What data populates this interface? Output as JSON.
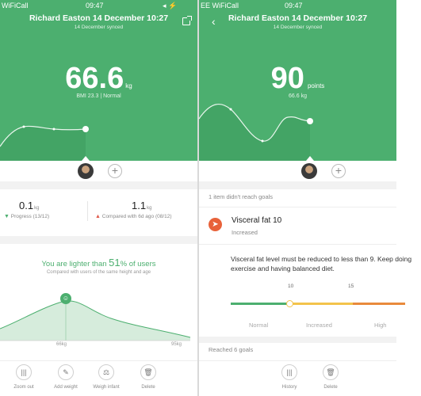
{
  "left": {
    "status_carrier": "WiFiCall",
    "status_time": "09:47",
    "title": "Richard Easton 14 December 10:27",
    "synced": "14 December synced",
    "weight_value": "66.6",
    "weight_unit": "kg",
    "bmi_text": "BMI 23.3 | Normal",
    "stats": [
      {
        "value": "0.1",
        "unit": "kg",
        "label": "Progress (13/12)",
        "trend": "down"
      },
      {
        "value": "1.1",
        "unit": "kg",
        "label": "Compared with 6d ago (08/12)",
        "trend": "up"
      }
    ],
    "lighter_prefix": "You are lighter than",
    "lighter_pct": "51",
    "lighter_suffix": "% of users",
    "compared_note": "Compared with users of the same height and age",
    "dist_axis": [
      "66kg",
      "95kg"
    ],
    "bottom_nav": [
      {
        "label": "Zoom out",
        "icon": "bars-icon"
      },
      {
        "label": "Add weight",
        "icon": "edit-icon"
      },
      {
        "label": "Weigh infant",
        "icon": "scale-icon"
      },
      {
        "label": "Delete",
        "icon": "trash-icon"
      }
    ]
  },
  "right": {
    "status_carrier": "EE WiFiCall",
    "status_time": "09:47",
    "title": "Richard Easton 14 December 10:27",
    "synced": "14 December synced",
    "score_value": "90",
    "score_unit": "points",
    "weight_sub": "66.6 kg",
    "goals_not_reached": "1 item didn't reach goals",
    "metric_name": "Visceral fat",
    "metric_value": "10",
    "metric_status": "Increased",
    "advice": "Visceral fat level must be reduced to less than 9. Keep doing exercise and having balanced diet.",
    "range_ticks": [
      "10",
      "15"
    ],
    "range_labels": [
      "Normal",
      "Increased",
      "High"
    ],
    "reached_goals": "Reached 6 goals",
    "bottom_nav": [
      {
        "label": "History",
        "icon": "bars-icon"
      },
      {
        "label": "Delete",
        "icon": "trash-icon"
      }
    ]
  },
  "colors": {
    "accent": "#4caf6f",
    "warning": "#f3c34b",
    "danger": "#e8623a"
  }
}
